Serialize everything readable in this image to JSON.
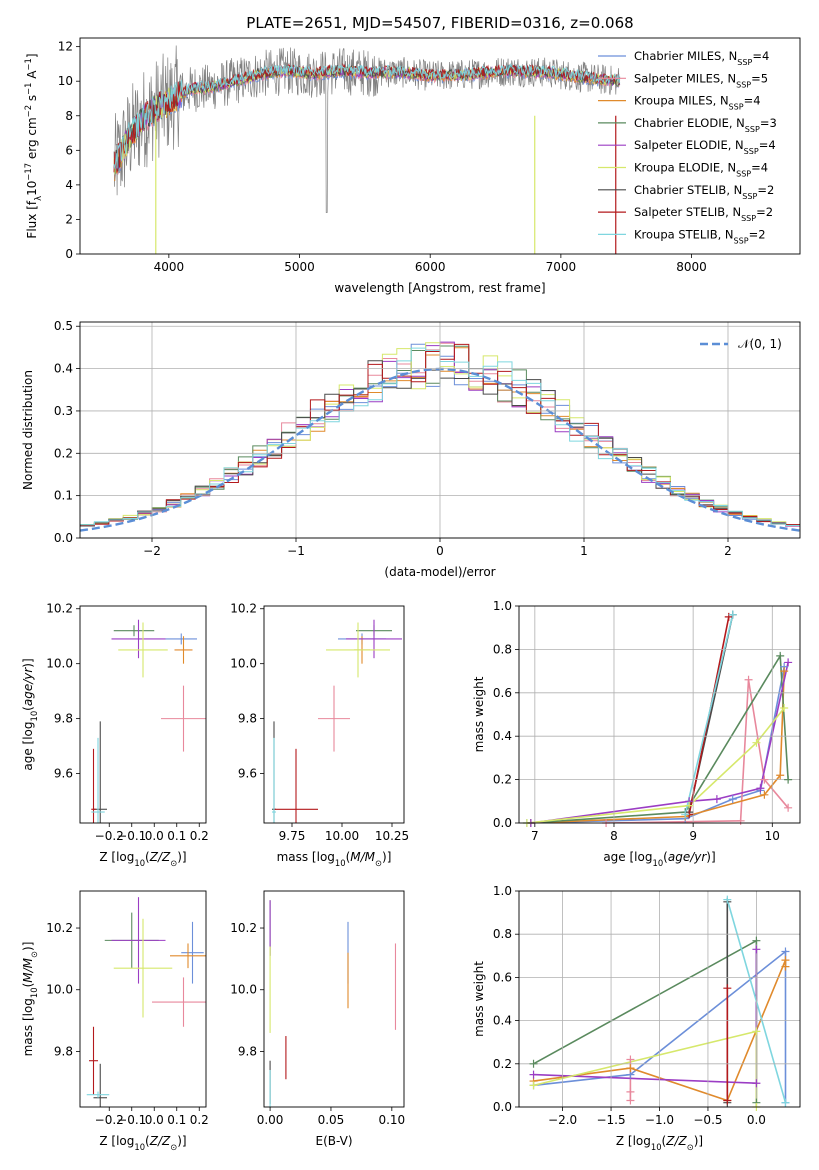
{
  "colors": [
    "#6c8fd9",
    "#e8889c",
    "#e08a2c",
    "#5a8a5e",
    "#9b3dc4",
    "#d6e86b",
    "#4a4a4a",
    "#b3191c",
    "#7fd6df"
  ],
  "spectrum_color": "#808080",
  "chart_data": [
    {
      "id": "spectrum",
      "type": "line",
      "title": "PLATE=2651, MJD=54507, FIBERID=0316, z=0.068",
      "xlabel": "wavelength [Angstrom, rest frame]",
      "ylabel": "Flux [f_λ 10^-17 erg cm^-2 s^-1 A^-1]",
      "xlim": [
        3320,
        8830
      ],
      "ylim": [
        0,
        12.5
      ],
      "xticks": [
        4000,
        5000,
        6000,
        7000,
        8000
      ],
      "yticks": [
        0,
        2,
        4,
        6,
        8,
        10,
        12
      ],
      "grid": false,
      "legend_placement": "right",
      "legend": [
        {
          "base": "Chabrier MILES, N",
          "sub": "SSP",
          "tail": "=4"
        },
        {
          "base": "Salpeter MILES, N",
          "sub": "SSP",
          "tail": "=5"
        },
        {
          "base": "Kroupa MILES, N",
          "sub": "SSP",
          "tail": "=4"
        },
        {
          "base": "Chabrier ELODIE, N",
          "sub": "SSP",
          "tail": "=3"
        },
        {
          "base": "Salpeter ELODIE, N",
          "sub": "SSP",
          "tail": "=4"
        },
        {
          "base": "Kroupa ELODIE, N",
          "sub": "SSP",
          "tail": "=4"
        },
        {
          "base": "Chabrier STELIB, N",
          "sub": "SSP",
          "tail": "=2"
        },
        {
          "base": "Salpeter STELIB, N",
          "sub": "SSP",
          "tail": "=2"
        },
        {
          "base": "Kroupa STELIB, N",
          "sub": "SSP",
          "tail": "=2"
        }
      ],
      "continuum": {
        "x": [
          3580,
          3700,
          3800,
          3900,
          4000,
          4100,
          4200,
          4300,
          4500,
          4700,
          4900,
          5100,
          5300,
          5500,
          5800,
          6000,
          6300,
          6600,
          6900,
          7100,
          7300,
          7450
        ],
        "y": [
          5.0,
          6.8,
          7.8,
          8.4,
          8.8,
          9.3,
          9.6,
          9.6,
          10.0,
          10.4,
          10.6,
          10.4,
          10.6,
          10.5,
          10.5,
          10.3,
          10.4,
          10.6,
          10.5,
          10.3,
          10.1,
          10.0
        ]
      }
    },
    {
      "id": "residuals",
      "type": "histogram",
      "xlabel": "(data-model)/error",
      "ylabel": "Normed distribution",
      "xlim": [
        -2.5,
        2.5
      ],
      "ylim": [
        0,
        0.51
      ],
      "xticks": [
        -2,
        -1,
        0,
        1,
        2
      ],
      "yticks": [
        0.0,
        0.1,
        0.2,
        0.3,
        0.4,
        0.5
      ],
      "grid": true,
      "legend": [
        "𝒩(0, 1)"
      ],
      "legend_placement": "top-right",
      "bin_width": 0.1
    },
    {
      "id": "age-vs-Z",
      "type": "errorbar",
      "xlabel": "Z [log10(Z/Z⊙)]",
      "ylabel": "age  [log10(age/yr)]",
      "xlim": [
        -0.33,
        0.23
      ],
      "ylim": [
        9.42,
        10.21
      ],
      "xticks": [
        -0.2,
        -0.1,
        0.0,
        0.1,
        0.2
      ],
      "yticks": [
        9.6,
        9.8,
        10.0,
        10.2
      ],
      "points": [
        {
          "x": 0.12,
          "y": 10.09,
          "xerr": 0.07,
          "yerr": 0.02
        },
        {
          "x": 0.13,
          "y": 9.8,
          "xerr": 0.1,
          "yerr": 0.12
        },
        {
          "x": 0.13,
          "y": 10.05,
          "xerr": 0.04,
          "yerr": 0.05
        },
        {
          "x": -0.09,
          "y": 10.12,
          "xerr": 0.09,
          "yerr": 0.02
        },
        {
          "x": -0.07,
          "y": 10.09,
          "xerr": 0.12,
          "yerr": 0.07
        },
        {
          "x": -0.05,
          "y": 10.05,
          "xerr": 0.11,
          "yerr": 0.1
        },
        {
          "x": -0.24,
          "y": 9.47,
          "xerr": 0.03,
          "yerr": 0.32
        },
        {
          "x": -0.27,
          "y": 9.47,
          "xerr": 0.01,
          "yerr": 0.22
        },
        {
          "x": -0.25,
          "y": 9.46,
          "xerr": 0.03,
          "yerr": 0.27
        }
      ]
    },
    {
      "id": "age-vs-mass",
      "type": "errorbar",
      "xlabel": "mass [log10(M/M⊙)]",
      "ylabel": "",
      "xlim": [
        9.61,
        10.31
      ],
      "ylim": [
        9.42,
        10.21
      ],
      "xticks": [
        9.75,
        10.0,
        10.25
      ],
      "yticks": [
        9.6,
        9.8,
        10.0,
        10.2
      ],
      "points": [
        {
          "x": 10.1,
          "y": 10.09,
          "xerr": 0.12,
          "yerr": 0.02
        },
        {
          "x": 9.96,
          "y": 9.8,
          "xerr": 0.08,
          "yerr": 0.12
        },
        {
          "x": 10.1,
          "y": 10.05,
          "xerr": 0.04,
          "yerr": 0.05
        },
        {
          "x": 10.16,
          "y": 10.12,
          "xerr": 0.09,
          "yerr": 0.02
        },
        {
          "x": 10.16,
          "y": 10.09,
          "xerr": 0.14,
          "yerr": 0.07
        },
        {
          "x": 10.08,
          "y": 10.05,
          "xerr": 0.16,
          "yerr": 0.1
        },
        {
          "x": 9.66,
          "y": 9.47,
          "xerr": 0.01,
          "yerr": 0.32
        },
        {
          "x": 9.77,
          "y": 9.47,
          "xerr": 0.11,
          "yerr": 0.22
        },
        {
          "x": 9.66,
          "y": 9.46,
          "xerr": 0.01,
          "yerr": 0.27
        }
      ]
    },
    {
      "id": "weight-vs-age",
      "type": "line",
      "xlabel": "age  [log10(age/yr)]",
      "ylabel": "mass weight",
      "xlim": [
        6.8,
        10.35
      ],
      "ylim": [
        0,
        1.0
      ],
      "xticks": [
        7,
        8,
        9,
        10
      ],
      "yticks": [
        0.0,
        0.2,
        0.4,
        0.6,
        0.8,
        1.0
      ],
      "grid": true,
      "series": [
        {
          "x": [
            6.9,
            8.9,
            9.5,
            9.85,
            10.15
          ],
          "y": [
            0.0,
            0.02,
            0.11,
            0.15,
            0.72
          ]
        },
        {
          "x": [
            7.9,
            9.6,
            9.7,
            9.9,
            10.2
          ],
          "y": [
            0.0,
            0.01,
            0.66,
            0.2,
            0.07
          ]
        },
        {
          "x": [
            6.95,
            8.9,
            9.9,
            10.1,
            10.15
          ],
          "y": [
            0.0,
            0.03,
            0.13,
            0.22,
            0.7
          ]
        },
        {
          "x": [
            6.95,
            8.9,
            10.1,
            10.2
          ],
          "y": [
            0.0,
            0.05,
            0.77,
            0.2
          ]
        },
        {
          "x": [
            6.95,
            8.95,
            9.3,
            9.85,
            10.2
          ],
          "y": [
            0.0,
            0.1,
            0.11,
            0.16,
            0.74
          ]
        },
        {
          "x": [
            6.9,
            8.95,
            9.8,
            10.15
          ],
          "y": [
            0.0,
            0.08,
            0.37,
            0.53
          ]
        },
        {
          "x": [
            8.95,
            9.5
          ],
          "y": [
            0.05,
            0.96
          ]
        },
        {
          "x": [
            8.95,
            9.45
          ],
          "y": [
            0.04,
            0.95
          ]
        },
        {
          "x": [
            8.9,
            9.5
          ],
          "y": [
            0.04,
            0.96
          ]
        }
      ]
    },
    {
      "id": "mass-vs-Z",
      "type": "errorbar",
      "xlabel": "Z [log10(Z/Z⊙)]",
      "ylabel": "mass [log10(M/M⊙)]",
      "xlim": [
        -0.33,
        0.23
      ],
      "ylim": [
        9.62,
        10.32
      ],
      "xticks": [
        -0.2,
        -0.1,
        0.0,
        0.1,
        0.2
      ],
      "yticks": [
        9.8,
        10.0,
        10.2
      ],
      "points": [
        {
          "x": 0.17,
          "y": 10.12,
          "xerr": 0.05,
          "yerr": 0.1
        },
        {
          "x": 0.13,
          "y": 9.96,
          "xerr": 0.14,
          "yerr": 0.08
        },
        {
          "x": 0.15,
          "y": 10.11,
          "xerr": 0.08,
          "yerr": 0.04
        },
        {
          "x": -0.1,
          "y": 10.16,
          "xerr": 0.12,
          "yerr": 0.09
        },
        {
          "x": -0.07,
          "y": 10.16,
          "xerr": 0.12,
          "yerr": 0.14
        },
        {
          "x": -0.05,
          "y": 10.07,
          "xerr": 0.13,
          "yerr": 0.16
        },
        {
          "x": -0.24,
          "y": 9.65,
          "xerr": 0.03,
          "yerr": 0.11
        },
        {
          "x": -0.27,
          "y": 9.77,
          "xerr": 0.02,
          "yerr": 0.11
        },
        {
          "x": -0.25,
          "y": 9.66,
          "xerr": 0.05,
          "yerr": 0.01
        }
      ]
    },
    {
      "id": "mass-vs-EBV",
      "type": "errorbar",
      "xlabel": "E(B-V)",
      "ylabel": "",
      "xlim": [
        -0.005,
        0.11
      ],
      "ylim": [
        9.62,
        10.32
      ],
      "xticks": [
        0.0,
        0.05,
        0.1
      ],
      "yticks": [
        9.8,
        10.0,
        10.2
      ],
      "points": [
        {
          "x": 0.064,
          "y": 10.12,
          "xerr": 0,
          "yerr": 0.1
        },
        {
          "x": 0.103,
          "y": 10.01,
          "xerr": 0,
          "yerr": 0.14
        },
        {
          "x": 0.064,
          "y": 10.03,
          "xerr": 0,
          "yerr": 0.09
        },
        {
          "x": 0.0,
          "y": 10.2,
          "xerr": 0,
          "yerr": 0.09
        },
        {
          "x": 0.0,
          "y": 10.2,
          "xerr": 0,
          "yerr": 0.09
        },
        {
          "x": 0.0,
          "y": 10.0,
          "xerr": 0,
          "yerr": 0.14
        },
        {
          "x": 0.0,
          "y": 9.7,
          "xerr": 0,
          "yerr": 0.07
        },
        {
          "x": 0.013,
          "y": 9.78,
          "xerr": 0,
          "yerr": 0.07
        },
        {
          "x": 0.0,
          "y": 9.68,
          "xerr": 0,
          "yerr": 0.06
        }
      ]
    },
    {
      "id": "weight-vs-Z",
      "type": "line",
      "xlabel": "Z [log10(Z/Z⊙)]",
      "ylabel": "mass weight",
      "xlim": [
        -2.45,
        0.45
      ],
      "ylim": [
        0,
        1.0
      ],
      "xticks": [
        -2.0,
        -1.5,
        -1.0,
        -0.5,
        0.0
      ],
      "yticks": [
        0.0,
        0.2,
        0.4,
        0.6,
        0.8,
        1.0
      ],
      "grid": true,
      "series": [
        {
          "x": [
            -2.3,
            -1.3,
            0.3,
            0.3
          ],
          "y": [
            0.1,
            0.15,
            0.72,
            0.02
          ]
        },
        {
          "x": [
            -1.3,
            -1.3,
            -1.3
          ],
          "y": [
            0.22,
            0.07,
            0.03
          ]
        },
        {
          "x": [
            -2.3,
            -1.3,
            -0.3,
            0.3,
            0.3
          ],
          "y": [
            0.12,
            0.18,
            0.03,
            0.68,
            0.65
          ]
        },
        {
          "x": [
            -2.3,
            0.0,
            0.0
          ],
          "y": [
            0.2,
            0.77,
            0.02
          ]
        },
        {
          "x": [
            -2.3,
            0.0,
            0.0
          ],
          "y": [
            0.15,
            0.11,
            0.73
          ]
        },
        {
          "x": [
            -2.3,
            0.0,
            0.0
          ],
          "y": [
            0.1,
            0.35,
            0.0
          ]
        },
        {
          "x": [
            -0.3,
            -0.3
          ],
          "y": [
            0.95,
            0.02
          ]
        },
        {
          "x": [
            -0.3,
            -0.3
          ],
          "y": [
            0.03,
            0.55
          ]
        },
        {
          "x": [
            -0.3,
            0.3
          ],
          "y": [
            0.96,
            0.02
          ]
        }
      ]
    }
  ]
}
